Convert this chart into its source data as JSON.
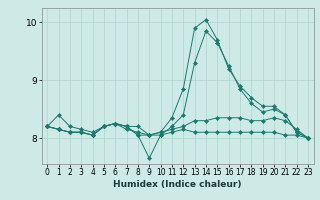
{
  "title": "",
  "xlabel": "Humidex (Indice chaleur)",
  "ylabel": "",
  "background_color": "#ceeae6",
  "plot_bg_color": "#ceeae6",
  "grid_color": "#aed4d0",
  "line_color": "#1a7a6e",
  "xlim": [
    -0.5,
    23.5
  ],
  "ylim": [
    7.55,
    10.25
  ],
  "yticks": [
    8,
    9,
    10
  ],
  "xticks": [
    0,
    1,
    2,
    3,
    4,
    5,
    6,
    7,
    8,
    9,
    10,
    11,
    12,
    13,
    14,
    15,
    16,
    17,
    18,
    19,
    20,
    21,
    22,
    23
  ],
  "series": [
    {
      "x": [
        0,
        1,
        2,
        3,
        4,
        5,
        6,
        7,
        8,
        9,
        10,
        11,
        12,
        13,
        14,
        15,
        16,
        17,
        18,
        19,
        20,
        21,
        22,
        23
      ],
      "y": [
        8.2,
        8.4,
        8.2,
        8.15,
        8.1,
        8.2,
        8.25,
        8.2,
        8.05,
        7.65,
        8.05,
        8.1,
        8.15,
        8.1,
        8.1,
        8.1,
        8.1,
        8.1,
        8.1,
        8.1,
        8.1,
        8.05,
        8.05,
        8.0
      ]
    },
    {
      "x": [
        0,
        1,
        2,
        3,
        4,
        5,
        6,
        7,
        8,
        9,
        10,
        11,
        12,
        13,
        14,
        15,
        16,
        17,
        18,
        19,
        20,
        21,
        22,
        23
      ],
      "y": [
        8.2,
        8.15,
        8.1,
        8.1,
        8.05,
        8.2,
        8.25,
        8.2,
        8.2,
        8.05,
        8.05,
        8.2,
        8.4,
        9.3,
        9.85,
        9.65,
        9.25,
        8.85,
        8.6,
        8.45,
        8.5,
        8.4,
        8.1,
        8.0
      ]
    },
    {
      "x": [
        0,
        1,
        2,
        3,
        4,
        5,
        6,
        7,
        8,
        9,
        10,
        11,
        12,
        13,
        14,
        15,
        16,
        17,
        18,
        19,
        20,
        21,
        22,
        23
      ],
      "y": [
        8.2,
        8.15,
        8.1,
        8.1,
        8.05,
        8.2,
        8.25,
        8.15,
        8.1,
        8.05,
        8.1,
        8.35,
        8.85,
        9.9,
        10.05,
        9.7,
        9.2,
        8.9,
        8.7,
        8.55,
        8.55,
        8.4,
        8.1,
        8.0
      ]
    },
    {
      "x": [
        0,
        1,
        2,
        3,
        4,
        5,
        6,
        7,
        8,
        9,
        10,
        11,
        12,
        13,
        14,
        15,
        16,
        17,
        18,
        19,
        20,
        21,
        22,
        23
      ],
      "y": [
        8.2,
        8.15,
        8.1,
        8.1,
        8.05,
        8.2,
        8.25,
        8.2,
        8.05,
        8.05,
        8.1,
        8.15,
        8.2,
        8.3,
        8.3,
        8.35,
        8.35,
        8.35,
        8.3,
        8.3,
        8.35,
        8.3,
        8.15,
        8.0
      ]
    }
  ]
}
